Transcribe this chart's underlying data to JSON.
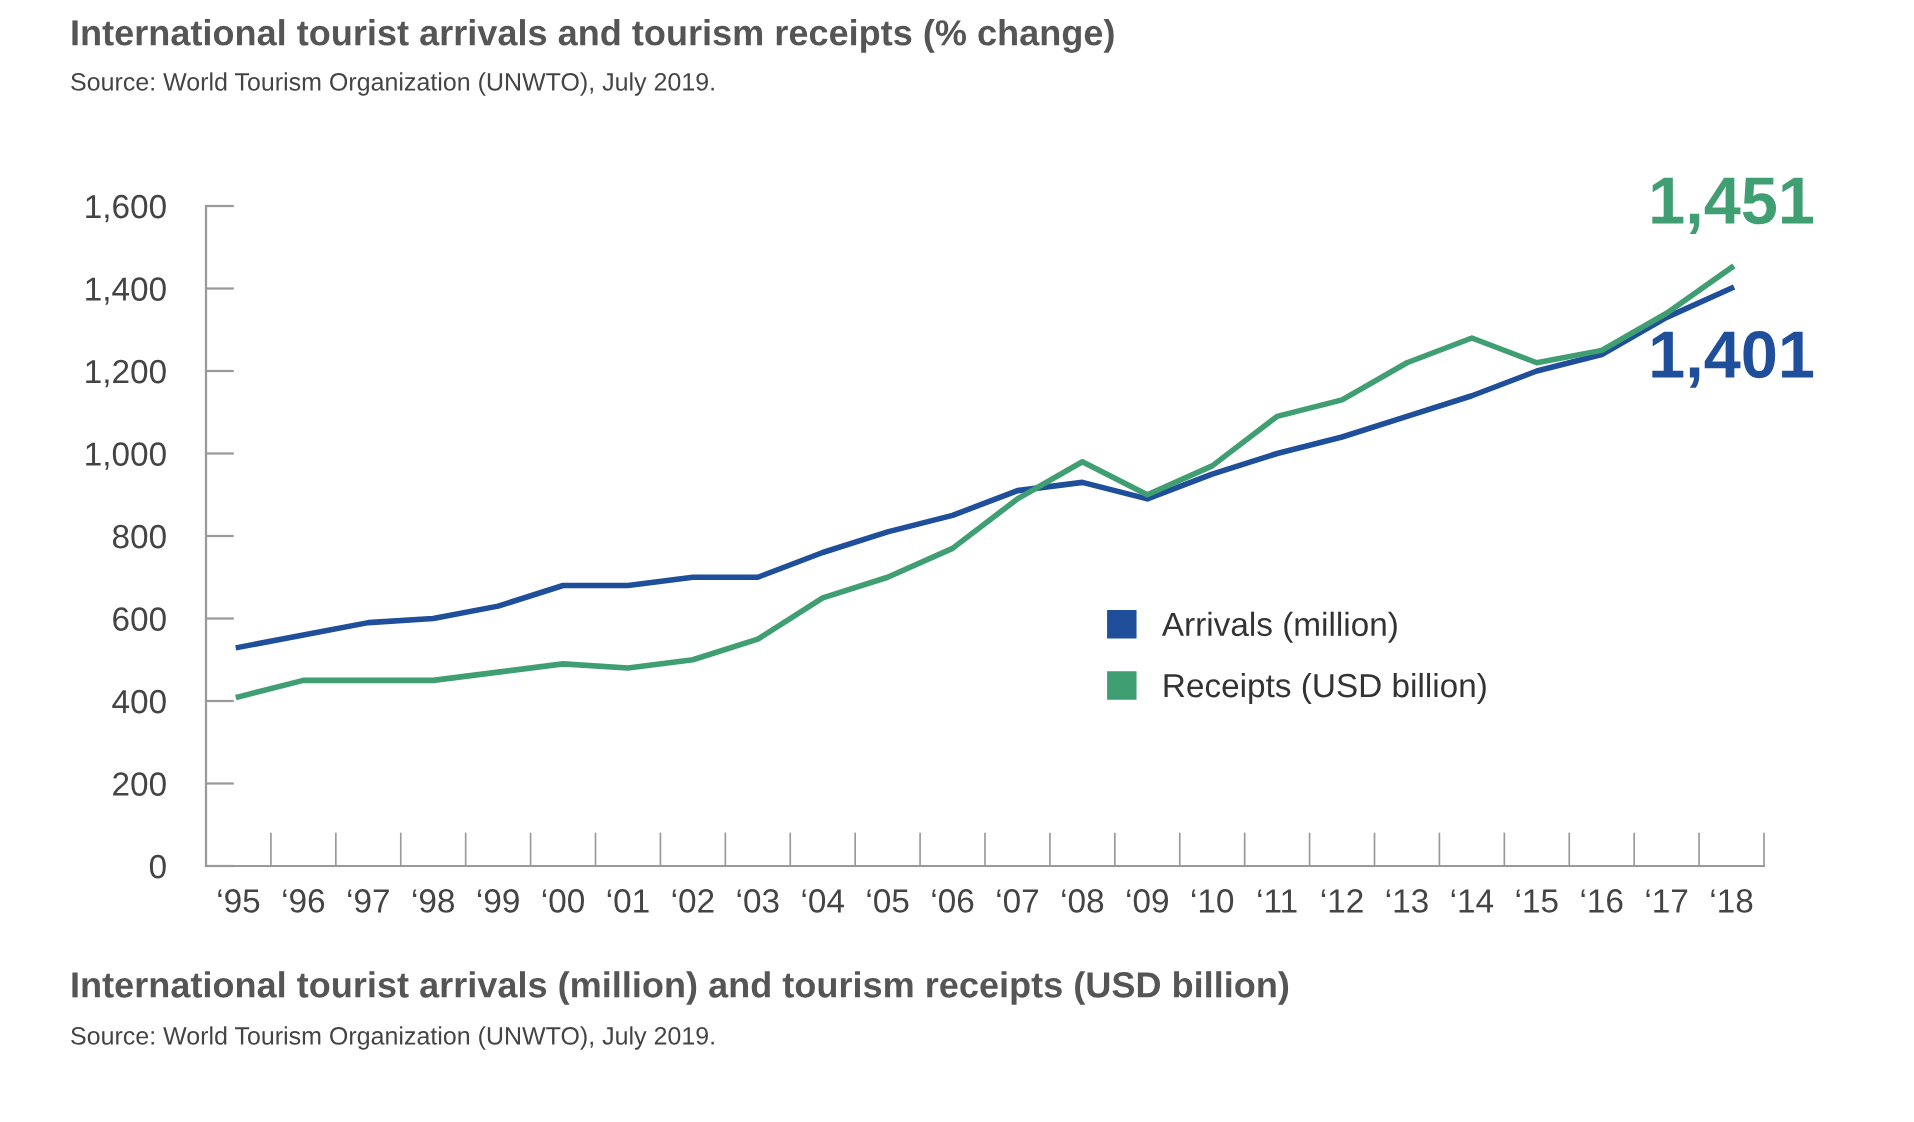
{
  "chart_data": {
    "type": "line",
    "title": "International tourist arrivals and tourism receipts (% change)",
    "subtitle": "Source: World Tourism Organization (UNWTO), July 2019.",
    "categories": [
      "‘95",
      "‘96",
      "‘97",
      "‘98",
      "‘99",
      "‘00",
      "‘01",
      "‘02",
      "‘03",
      "‘04",
      "‘05",
      "‘06",
      "‘07",
      "‘08",
      "‘09",
      "‘10",
      "‘11",
      "‘12",
      "‘13",
      "‘14",
      "‘15",
      "‘16",
      "‘17",
      "‘18"
    ],
    "series": [
      {
        "name": "Arrivals (million)",
        "color": "#1f4e9a",
        "values": [
          530,
          560,
          590,
          600,
          630,
          680,
          680,
          700,
          700,
          760,
          810,
          850,
          910,
          930,
          890,
          950,
          1000,
          1040,
          1090,
          1140,
          1200,
          1240,
          1330,
          1401
        ]
      },
      {
        "name": "Receipts (USD billion)",
        "color": "#3f9e72",
        "values": [
          410,
          450,
          450,
          450,
          470,
          490,
          480,
          500,
          550,
          650,
          700,
          770,
          890,
          980,
          900,
          970,
          1090,
          1130,
          1220,
          1280,
          1220,
          1250,
          1340,
          1451
        ]
      }
    ],
    "ylim": [
      0,
      1600
    ],
    "yticks": [
      0,
      {
        "value": 200,
        "label": "200"
      },
      {
        "value": 400,
        "label": "400"
      },
      {
        "value": 600,
        "label": "600"
      },
      {
        "value": 800,
        "label": "800"
      },
      {
        "value": 1000,
        "label": "1,000"
      },
      {
        "value": 1200,
        "label": "1,200"
      },
      {
        "value": 1400,
        "label": "1,400"
      },
      {
        "value": 1600,
        "label": "1,600"
      }
    ],
    "grid": false,
    "legend": "center right",
    "marker": "none",
    "line_style": "solid",
    "annotations": [
      {
        "text": "1,451",
        "x": "‘18",
        "y": 1451
      },
      {
        "text": "1,401",
        "x": "‘18",
        "y": 1401
      },
      "International tourist arrivals (million) and tourism receipts (USD billion)",
      "Source: World Tourism Organization (UNWTO), July 2019."
    ]
  }
}
